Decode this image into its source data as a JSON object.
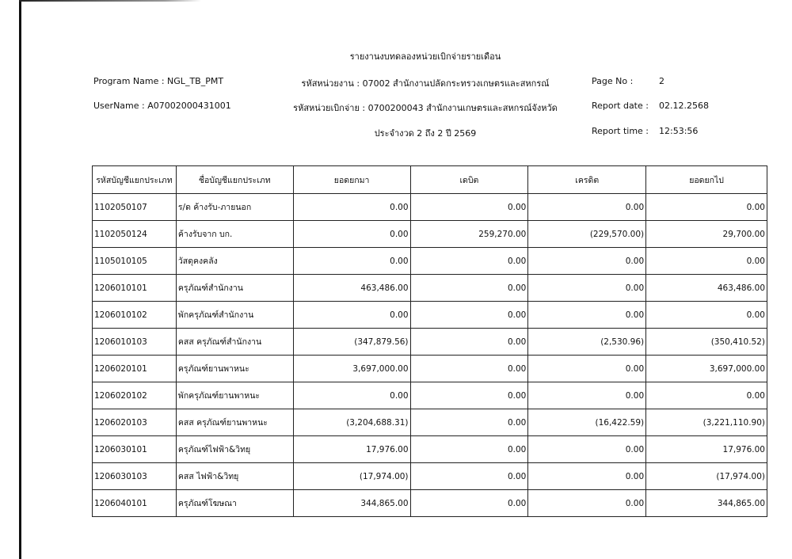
{
  "report": {
    "title": "รายงานงบทดลองหน่วยเบิกจ่ายรายเดือน",
    "program_name": "Program Name : NGL_TB_PMT",
    "user_name": "UserName : A07002000431001",
    "agency": "รหัสหน่วยงาน : 07002 สำนักงานปลัดกระทรวงเกษตรและสหกรณ์",
    "disbursing_unit": "รหัสหน่วยเบิกจ่าย : 0700200043 สำนักงานเกษตรและสหกรณ์จังหวัด",
    "period": "ประจำงวด 2 ถึง 2 ปี 2569",
    "page_no_label": "Page No :",
    "page_no": "2",
    "report_date_label": "Report date :",
    "report_date": "02.12.2568",
    "report_time_label": "Report time :",
    "report_time": "12:53:56"
  },
  "table": {
    "headers": [
      "รหัสบัญชีแยกประเภท",
      "ชื่อบัญชีแยกประเภท",
      "ยอดยกมา",
      "เดบิต",
      "เครดิต",
      "ยอดยกไป"
    ],
    "rows": [
      [
        "1102050107",
        "ร/ด ค้างรับ-ภายนอก",
        "0.00",
        "0.00",
        "0.00",
        "0.00"
      ],
      [
        "1102050124",
        "ค้างรับจาก บก.",
        "0.00",
        "259,270.00",
        "(229,570.00)",
        "29,700.00"
      ],
      [
        "1105010105",
        "วัสดุคงคลัง",
        "0.00",
        "0.00",
        "0.00",
        "0.00"
      ],
      [
        "1206010101",
        "ครุภัณฑ์สำนักงาน",
        "463,486.00",
        "0.00",
        "0.00",
        "463,486.00"
      ],
      [
        "1206010102",
        "พักครุภัณฑ์สำนักงาน",
        "0.00",
        "0.00",
        "0.00",
        "0.00"
      ],
      [
        "1206010103",
        "คสส ครุภัณฑ์สำนักงาน",
        "(347,879.56)",
        "0.00",
        "(2,530.96)",
        "(350,410.52)"
      ],
      [
        "1206020101",
        "ครุภัณฑ์ยานพาหนะ",
        "3,697,000.00",
        "0.00",
        "0.00",
        "3,697,000.00"
      ],
      [
        "1206020102",
        "พักครุภัณฑ์ยานพาหนะ",
        "0.00",
        "0.00",
        "0.00",
        "0.00"
      ],
      [
        "1206020103",
        "คสส ครุภัณฑ์ยานพาหนะ",
        "(3,204,688.31)",
        "0.00",
        "(16,422.59)",
        "(3,221,110.90)"
      ],
      [
        "1206030101",
        "ครุภัณฑ์ไฟฟ้า&วิทยุ",
        "17,976.00",
        "0.00",
        "0.00",
        "17,976.00"
      ],
      [
        "1206030103",
        "คสส ไฟฟ้า&วิทยุ",
        "(17,974.00)",
        "0.00",
        "0.00",
        "(17,974.00)"
      ],
      [
        "1206040101",
        "ครุภัณฑ์โฆษณา",
        "344,865.00",
        "0.00",
        "0.00",
        "344,865.00"
      ]
    ]
  }
}
